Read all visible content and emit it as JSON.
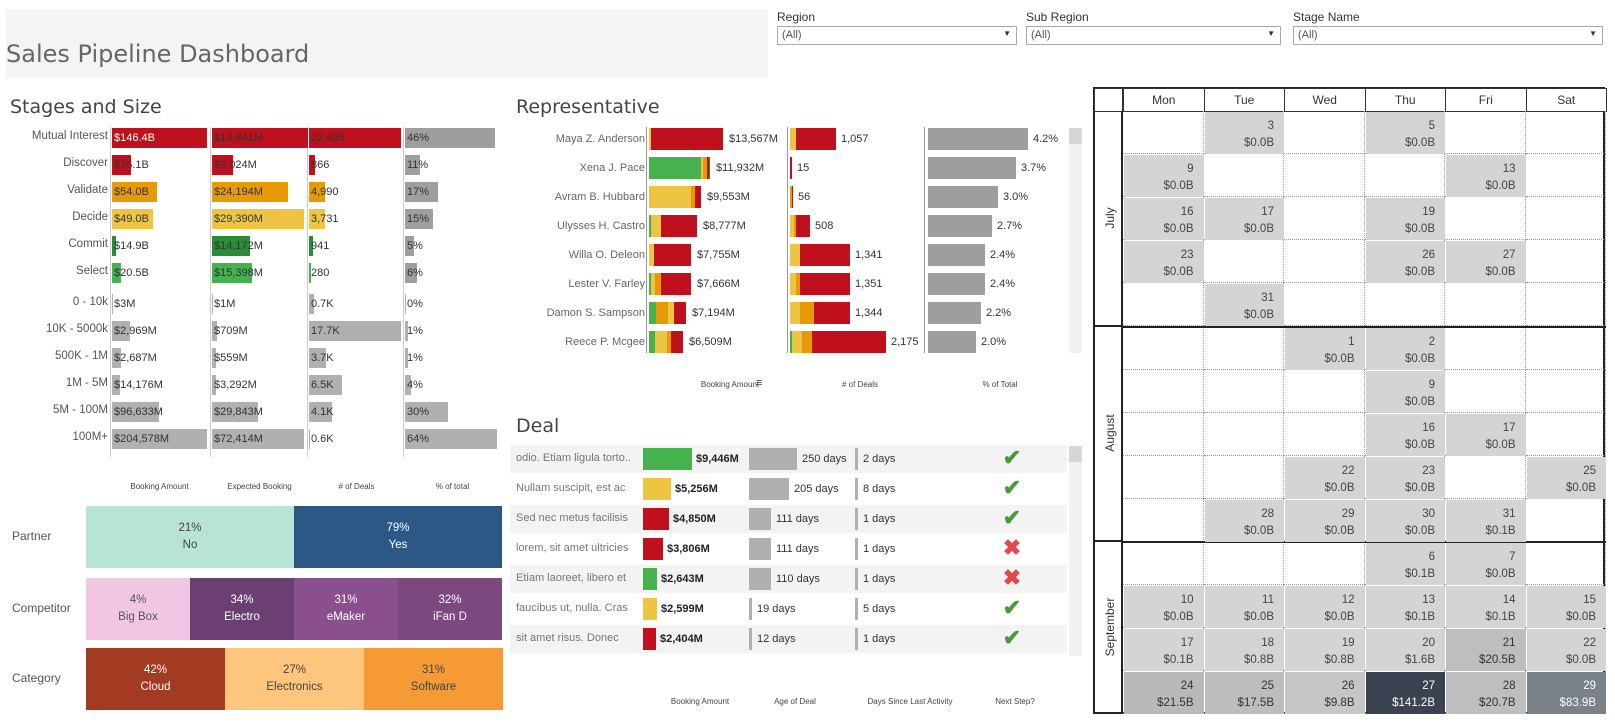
{
  "title": "Sales Pipeline Dashboard",
  "filters": [
    {
      "label": "Region",
      "value": "(All)"
    },
    {
      "label": "Sub Region",
      "value": "(All)"
    },
    {
      "label": "Stage Name",
      "value": "(All)"
    }
  ],
  "colors": {
    "red": "#c0101e",
    "orange": "#e59a06",
    "yellow": "#edc542",
    "green": "#45b14f",
    "dkgreen": "#2a8c37",
    "gray": "#9e9e9e"
  },
  "stages": {
    "title": "Stages and Size",
    "col_headers": [
      "Booking Amount",
      "Expected Booking",
      "# of Deals",
      "% of total"
    ],
    "stage_rows": [
      {
        "label": "Mutual Interest",
        "c1": "$146.4B",
        "c2": "$14,641M",
        "c3": "22,435",
        "c4": "46%"
      },
      {
        "label": "Discover",
        "c1": "$36.1B",
        "c2": "$9,024M",
        "c3": "866",
        "c4": "11%"
      },
      {
        "label": "Validate",
        "c1": "$54.0B",
        "c2": "$24,194M",
        "c3": "4,990",
        "c4": "17%"
      },
      {
        "label": "Decide",
        "c1": "$49.0B",
        "c2": "$29,390M",
        "c3": "3,731",
        "c4": "15%"
      },
      {
        "label": "Commit",
        "c1": "$14.9B",
        "c2": "$14,172M",
        "c3": "941",
        "c4": "5%"
      },
      {
        "label": "Select",
        "c1": "$20.5B",
        "c2": "$15,398M",
        "c3": "280",
        "c4": "6%"
      }
    ],
    "size_rows": [
      {
        "label": "0 - 10k",
        "c1": "$3M",
        "c2": "$1M",
        "c3": "0.7K",
        "c4": "0%"
      },
      {
        "label": "10K - 5000k",
        "c1": "$2,969M",
        "c2": "$709M",
        "c3": "17.7K",
        "c4": "1%"
      },
      {
        "label": "500K - 1M",
        "c1": "$2,687M",
        "c2": "$559M",
        "c3": "3.7K",
        "c4": "1%"
      },
      {
        "label": "1M - 5M",
        "c1": "$14,176M",
        "c2": "$3,292M",
        "c3": "6.5K",
        "c4": "4%"
      },
      {
        "label": "5M - 100M",
        "c1": "$96,633M",
        "c2": "$29,843M",
        "c3": "4.1K",
        "c4": "30%"
      },
      {
        "label": "100M+",
        "c1": "$204,578M",
        "c2": "$72,414M",
        "c3": "0.6K",
        "c4": "64%"
      }
    ]
  },
  "mix": {
    "partner": {
      "label": "Partner",
      "items": [
        {
          "pct": "21%",
          "name": "No"
        },
        {
          "pct": "79%",
          "name": "Yes"
        }
      ]
    },
    "competitor": {
      "label": "Competitor",
      "items": [
        {
          "pct": "4%",
          "name": "Big Box"
        },
        {
          "pct": "34%",
          "name": "Electro"
        },
        {
          "pct": "31%",
          "name": "eMaker"
        },
        {
          "pct": "32%",
          "name": "iFan D"
        }
      ]
    },
    "category": {
      "label": "Category",
      "items": [
        {
          "pct": "42%",
          "name": "Cloud"
        },
        {
          "pct": "27%",
          "name": "Electronics"
        },
        {
          "pct": "31%",
          "name": "Software"
        }
      ]
    }
  },
  "representative": {
    "title": "Representative",
    "col_headers": [
      "Booking Amount",
      "# of Deals",
      "% of Total"
    ],
    "rows": [
      {
        "name": "Maya Z. Anderson",
        "amount": "$13,567M",
        "deals": "1,057",
        "pct": "4.2%"
      },
      {
        "name": "Xena J. Pace",
        "amount": "$11,932M",
        "deals": "15",
        "pct": "3.7%"
      },
      {
        "name": "Avram B. Hubbard",
        "amount": "$9,553M",
        "deals": "56",
        "pct": "3.0%"
      },
      {
        "name": "Ulysses H. Castro",
        "amount": "$8,777M",
        "deals": "508",
        "pct": "2.7%"
      },
      {
        "name": "Willa O. Deleon",
        "amount": "$7,755M",
        "deals": "1,341",
        "pct": "2.4%"
      },
      {
        "name": "Lester V. Farley",
        "amount": "$7,666M",
        "deals": "1,351",
        "pct": "2.4%"
      },
      {
        "name": "Damon S. Sampson",
        "amount": "$7,194M",
        "deals": "1,344",
        "pct": "2.2%"
      },
      {
        "name": "Reece P. Mcgee",
        "amount": "$6,509M",
        "deals": "2,175",
        "pct": "2.0%"
      }
    ]
  },
  "deal": {
    "title": "Deal",
    "col_headers": [
      "Booking Amount",
      "Age of Deal",
      "Days Since Last Activity",
      "Next Step?"
    ],
    "rows": [
      {
        "name": "odio. Etiam ligula torto..",
        "amount": "$9,446M",
        "age": "250 days",
        "last": "2  days",
        "next": "yes"
      },
      {
        "name": "Nullam suscipit, est ac",
        "amount": "$5,256M",
        "age": "205 days",
        "last": "8  days",
        "next": "yes"
      },
      {
        "name": "Sed nec metus facilisis",
        "amount": "$4,850M",
        "age": "111 days",
        "last": "1  days",
        "next": "yes"
      },
      {
        "name": "lorem, sit amet ultricies",
        "amount": "$3,806M",
        "age": "111 days",
        "last": "1  days",
        "next": "no"
      },
      {
        "name": "Etiam laoreet, libero et",
        "amount": "$2,643M",
        "age": "110 days",
        "last": "1  days",
        "next": "no"
      },
      {
        "name": "faucibus ut, nulla. Cras",
        "amount": "$2,599M",
        "age": "19 days",
        "last": "5  days",
        "next": "yes"
      },
      {
        "name": "sit amet risus. Donec",
        "amount": "$2,404M",
        "age": "12 days",
        "last": "1  days",
        "next": "yes"
      }
    ]
  },
  "calendar": {
    "days": [
      "Mon",
      "Tue",
      "Wed",
      "Thu",
      "Fri",
      "Sat"
    ],
    "months": [
      "July",
      "August",
      "September"
    ],
    "cells": [
      {
        "w": 0,
        "d": 1,
        "day": "3",
        "val": "$0.0B"
      },
      {
        "w": 0,
        "d": 3,
        "day": "5",
        "val": "$0.0B"
      },
      {
        "w": 1,
        "d": 0,
        "day": "9",
        "val": "$0.0B"
      },
      {
        "w": 1,
        "d": 4,
        "day": "13",
        "val": "$0.0B"
      },
      {
        "w": 2,
        "d": 0,
        "day": "16",
        "val": "$0.0B"
      },
      {
        "w": 2,
        "d": 1,
        "day": "17",
        "val": "$0.0B"
      },
      {
        "w": 2,
        "d": 3,
        "day": "19",
        "val": "$0.0B"
      },
      {
        "w": 3,
        "d": 0,
        "day": "23",
        "val": "$0.0B"
      },
      {
        "w": 3,
        "d": 3,
        "day": "26",
        "val": "$0.0B"
      },
      {
        "w": 3,
        "d": 4,
        "day": "27",
        "val": "$0.0B"
      },
      {
        "w": 4,
        "d": 1,
        "day": "31",
        "val": "$0.0B"
      },
      {
        "w": 5,
        "d": 2,
        "day": "1",
        "val": "$0.0B"
      },
      {
        "w": 5,
        "d": 3,
        "day": "2",
        "val": "$0.0B"
      },
      {
        "w": 6,
        "d": 3,
        "day": "9",
        "val": "$0.0B"
      },
      {
        "w": 7,
        "d": 3,
        "day": "16",
        "val": "$0.0B"
      },
      {
        "w": 7,
        "d": 4,
        "day": "17",
        "val": "$0.0B"
      },
      {
        "w": 8,
        "d": 2,
        "day": "22",
        "val": "$0.0B"
      },
      {
        "w": 8,
        "d": 3,
        "day": "23",
        "val": "$0.0B"
      },
      {
        "w": 8,
        "d": 5,
        "day": "25",
        "val": "$0.0B"
      },
      {
        "w": 9,
        "d": 1,
        "day": "28",
        "val": "$0.0B"
      },
      {
        "w": 9,
        "d": 2,
        "day": "29",
        "val": "$0.0B"
      },
      {
        "w": 9,
        "d": 3,
        "day": "30",
        "val": "$0.0B"
      },
      {
        "w": 9,
        "d": 4,
        "day": "31",
        "val": "$0.1B"
      },
      {
        "w": 10,
        "d": 3,
        "day": "6",
        "val": "$0.1B"
      },
      {
        "w": 10,
        "d": 4,
        "day": "7",
        "val": "$0.0B"
      },
      {
        "w": 11,
        "d": 0,
        "day": "10",
        "val": "$0.0B"
      },
      {
        "w": 11,
        "d": 1,
        "day": "11",
        "val": "$0.0B"
      },
      {
        "w": 11,
        "d": 2,
        "day": "12",
        "val": "$0.0B"
      },
      {
        "w": 11,
        "d": 3,
        "day": "13",
        "val": "$0.1B"
      },
      {
        "w": 11,
        "d": 4,
        "day": "14",
        "val": "$0.1B"
      },
      {
        "w": 11,
        "d": 5,
        "day": "15",
        "val": "$0.0B"
      },
      {
        "w": 12,
        "d": 0,
        "day": "17",
        "val": "$0.1B"
      },
      {
        "w": 12,
        "d": 1,
        "day": "18",
        "val": "$0.8B"
      },
      {
        "w": 12,
        "d": 2,
        "day": "19",
        "val": "$0.8B"
      },
      {
        "w": 12,
        "d": 3,
        "day": "20",
        "val": "$1.6B"
      },
      {
        "w": 12,
        "d": 4,
        "day": "21",
        "val": "$20.5B"
      },
      {
        "w": 12,
        "d": 5,
        "day": "22",
        "val": "$0.0B"
      },
      {
        "w": 13,
        "d": 0,
        "day": "24",
        "val": "$21.5B"
      },
      {
        "w": 13,
        "d": 1,
        "day": "25",
        "val": "$17.5B"
      },
      {
        "w": 13,
        "d": 2,
        "day": "26",
        "val": "$9.8B"
      },
      {
        "w": 13,
        "d": 3,
        "day": "27",
        "val": "$141.2B"
      },
      {
        "w": 13,
        "d": 4,
        "day": "28",
        "val": "$20.7B"
      },
      {
        "w": 13,
        "d": 5,
        "day": "29",
        "val": "$83.9B"
      }
    ]
  }
}
